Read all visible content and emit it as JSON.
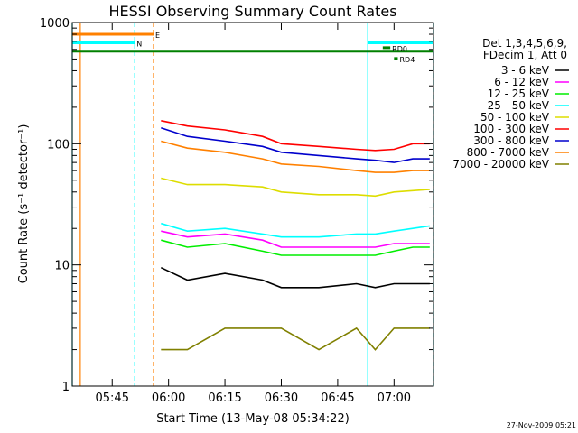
{
  "chart_data": {
    "type": "line",
    "title": "HESSI Observing Summary Count Rates",
    "xlabel": "Start Time (13-May-08 05:34:22)",
    "ylabel": "Count Rate (s⁻¹ detector⁻¹)",
    "y_scale": "log",
    "ylim": [
      1,
      1000
    ],
    "y_ticks": [
      {
        "value": 1,
        "label": "1"
      },
      {
        "value": 10,
        "label": "10"
      },
      {
        "value": 100,
        "label": "100"
      },
      {
        "value": 1000,
        "label": "1000"
      }
    ],
    "xlim": [
      "05:34:22",
      "07:10:30"
    ],
    "x_ticks": [
      {
        "time": "05:45",
        "label": "05:45"
      },
      {
        "time": "06:00",
        "label": "06:00"
      },
      {
        "time": "06:15",
        "label": "06:15"
      },
      {
        "time": "06:30",
        "label": "06:30"
      },
      {
        "time": "06:45",
        "label": "06:45"
      },
      {
        "time": "07:00",
        "label": "07:00"
      }
    ],
    "legend": {
      "position": "right",
      "header": [
        "Det 1,3,4,5,6,9,",
        "FDecim 1, Att 0"
      ]
    },
    "series": [
      {
        "name": "3 - 6 keV",
        "color": "#000000",
        "x": [
          "05:58:00",
          "06:05:00",
          "06:15:00",
          "06:25:00",
          "06:30:00",
          "06:40:00",
          "06:50:00",
          "06:55:00",
          "07:00:00",
          "07:05:00",
          "07:09:30"
        ],
        "values": [
          9.5,
          7.5,
          8.5,
          7.5,
          6.5,
          6.5,
          7.0,
          6.5,
          7.0,
          7.0,
          7.0
        ]
      },
      {
        "name": "6 - 12 keV",
        "color": "#ff00ff",
        "x": [
          "05:58:00",
          "06:05:00",
          "06:15:00",
          "06:25:00",
          "06:30:00",
          "06:40:00",
          "06:50:00",
          "06:55:00",
          "07:00:00",
          "07:05:00",
          "07:09:30"
        ],
        "values": [
          19,
          17,
          18,
          16,
          14,
          14,
          14,
          14,
          15,
          15,
          15
        ]
      },
      {
        "name": "12 - 25 keV",
        "color": "#00ee00",
        "x": [
          "05:58:00",
          "06:05:00",
          "06:15:00",
          "06:25:00",
          "06:30:00",
          "06:40:00",
          "06:50:00",
          "06:55:00",
          "07:00:00",
          "07:05:00",
          "07:09:30"
        ],
        "values": [
          16,
          14,
          15,
          13,
          12,
          12,
          12,
          12,
          13,
          14,
          14
        ]
      },
      {
        "name": "25 - 50 keV",
        "color": "#00ffff",
        "x": [
          "05:58:00",
          "06:05:00",
          "06:15:00",
          "06:25:00",
          "06:30:00",
          "06:40:00",
          "06:50:00",
          "06:55:00",
          "07:00:00",
          "07:05:00",
          "07:09:30"
        ],
        "values": [
          22,
          19,
          20,
          18,
          17,
          17,
          18,
          18,
          19,
          20,
          21
        ]
      },
      {
        "name": "50 - 100 keV",
        "color": "#dddd00",
        "x": [
          "05:58:00",
          "06:05:00",
          "06:15:00",
          "06:25:00",
          "06:30:00",
          "06:40:00",
          "06:50:00",
          "06:55:00",
          "07:00:00",
          "07:05:00",
          "07:09:30"
        ],
        "values": [
          52,
          46,
          46,
          44,
          40,
          38,
          38,
          37,
          40,
          41,
          42
        ]
      },
      {
        "name": "100 - 300 keV",
        "color": "#ff0000",
        "x": [
          "05:58:00",
          "06:05:00",
          "06:15:00",
          "06:25:00",
          "06:30:00",
          "06:40:00",
          "06:50:00",
          "06:55:00",
          "07:00:00",
          "07:05:00",
          "07:09:30"
        ],
        "values": [
          155,
          140,
          130,
          115,
          100,
          95,
          90,
          88,
          90,
          100,
          100
        ]
      },
      {
        "name": "300 - 800 keV",
        "color": "#0000cc",
        "x": [
          "05:58:00",
          "06:05:00",
          "06:15:00",
          "06:25:00",
          "06:30:00",
          "06:40:00",
          "06:50:00",
          "06:55:00",
          "07:00:00",
          "07:05:00",
          "07:09:30"
        ],
        "values": [
          135,
          115,
          105,
          95,
          85,
          80,
          75,
          73,
          70,
          75,
          75
        ]
      },
      {
        "name": "800 - 7000 keV",
        "color": "#ff8000",
        "x": [
          "05:58:00",
          "06:05:00",
          "06:15:00",
          "06:25:00",
          "06:30:00",
          "06:40:00",
          "06:50:00",
          "06:55:00",
          "07:00:00",
          "07:05:00",
          "07:09:30"
        ],
        "values": [
          105,
          92,
          85,
          75,
          68,
          65,
          60,
          58,
          58,
          60,
          60
        ]
      },
      {
        "name": "7000 - 20000 keV",
        "color": "#808000",
        "x": [
          "05:58:00",
          "06:05:00",
          "06:15:00",
          "06:25:00",
          "06:30:00",
          "06:40:00",
          "06:50:00",
          "06:55:00",
          "07:00:00",
          "07:05:00",
          "07:09:30"
        ],
        "values": [
          2,
          2,
          3,
          3,
          3,
          2,
          3,
          2,
          3,
          3,
          3
        ]
      }
    ],
    "flag_bars": [
      {
        "label": "E",
        "color": "#ff8000",
        "start": "05:34:22",
        "end": "05:56:00",
        "y": 800
      },
      {
        "label": "N",
        "color": "#00ffff",
        "start": "05:34:22",
        "end": "05:51:00",
        "y": 680
      },
      {
        "label": "",
        "color": "#00ffff",
        "start": "06:53:00",
        "end": "07:10:30",
        "y": 680
      },
      {
        "label": "",
        "color": "#008000",
        "start": "05:34:22",
        "end": "07:10:30",
        "y": 580
      },
      {
        "label": "RD0",
        "color": "#008000",
        "start": "06:57:00",
        "end": "06:59:00",
        "y": 620
      },
      {
        "label": "RD4",
        "color": "#008000",
        "start": "07:00:00",
        "end": "07:01:00",
        "y": 505
      }
    ],
    "vertical_markers": [
      {
        "time": "05:34:22",
        "color": "#00ffff",
        "style": "solid"
      },
      {
        "time": "05:36:30",
        "color": "#ff8000",
        "style": "solid"
      },
      {
        "time": "05:51:00",
        "color": "#00ffff",
        "style": "dashed"
      },
      {
        "time": "05:56:00",
        "color": "#ff8000",
        "style": "dashed"
      },
      {
        "time": "06:53:00",
        "color": "#00ffff",
        "style": "solid"
      },
      {
        "time": "07:10:30",
        "color": "#00ffff",
        "style": "dashed"
      }
    ],
    "footer": "27-Nov-2009 05:21",
    "grid": false
  }
}
